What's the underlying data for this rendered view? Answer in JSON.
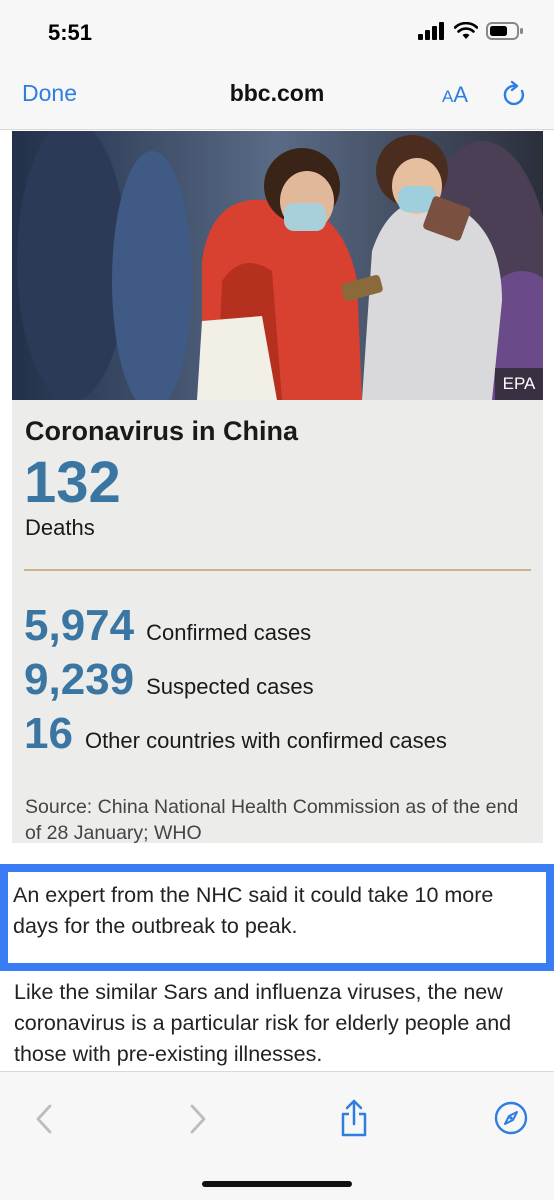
{
  "status_bar": {
    "time": "5:51"
  },
  "header": {
    "done_label": "Done",
    "domain": "bbc.com",
    "text_size_label_small": "A",
    "text_size_label_big": "A"
  },
  "article": {
    "photo_credit": "EPA",
    "card_title": "Coronavirus in China",
    "deaths_count": "132",
    "deaths_label": "Deaths",
    "stats": [
      {
        "value": "5,974",
        "label": "Confirmed cases"
      },
      {
        "value": "9,239",
        "label": "Suspected cases"
      },
      {
        "value": "16",
        "label": "Other countries with confirmed cases"
      }
    ],
    "source": "Source: China National Health Commission as of the end of 28 January; WHO",
    "highlight_text": "An expert from the NHC said it could take 10 more days for the outbreak to peak.",
    "paragraph": "Like the similar Sars and influenza viruses, the new coronavirus is a particular risk for elderly people and those with pre-existing illnesses."
  },
  "colors": {
    "accent": "#2f7de1",
    "stat_blue": "#3b76a3",
    "highlight_border": "#3a7cf3",
    "divider": "#c9b48e"
  },
  "toolbar": {
    "icons": [
      "back-icon",
      "forward-icon",
      "share-icon",
      "safari-compass-icon"
    ]
  }
}
